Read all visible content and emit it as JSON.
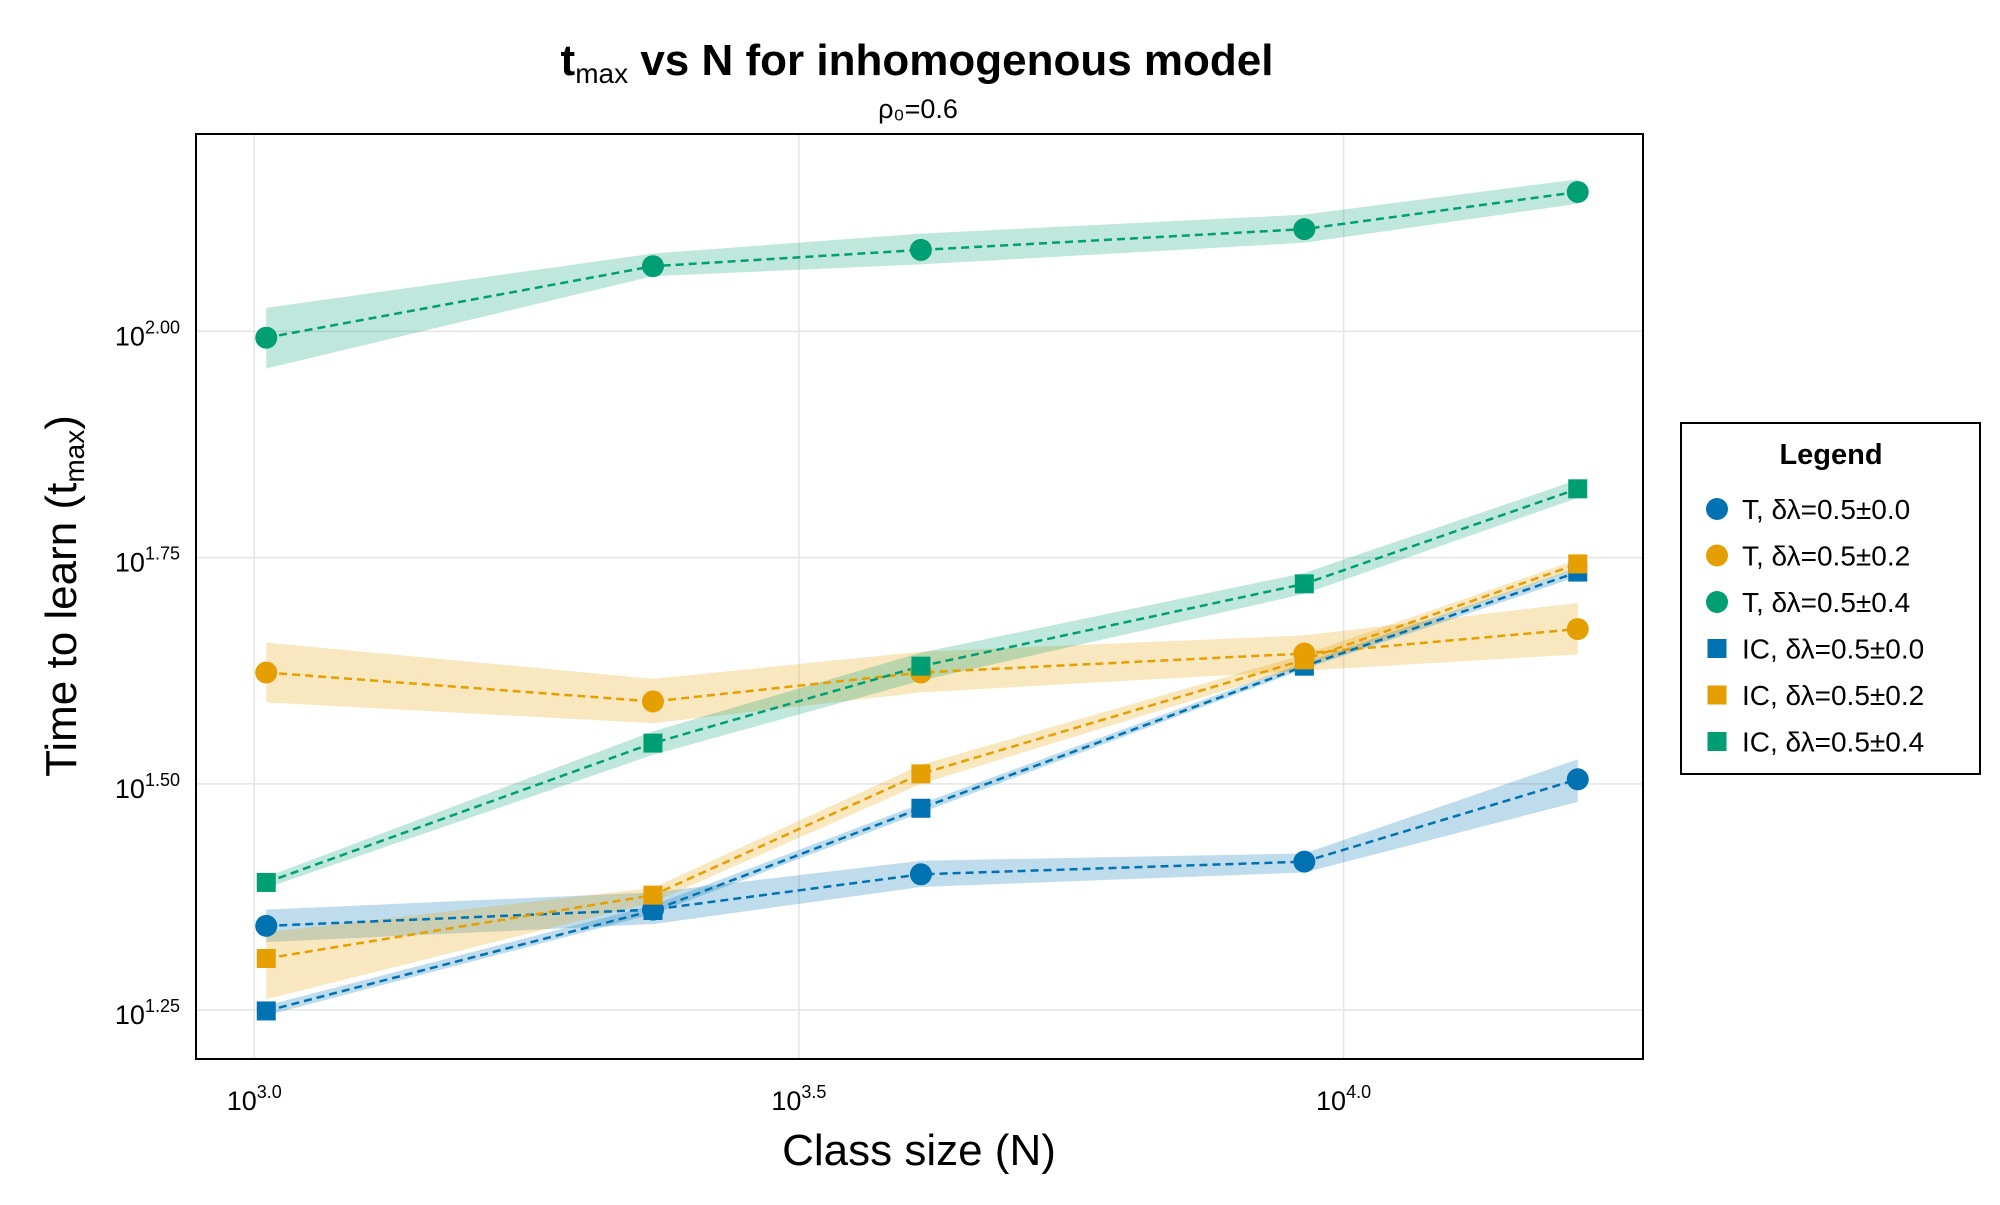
{
  "chart_data": {
    "type": "line",
    "title_main": "t",
    "title_sub": "max",
    "title_rest": " vs N for inhomogenous model",
    "subtitle": "ρ₀=0.6",
    "xlabel": "Class size (N)",
    "ylabel_main": "Time to learn (t",
    "ylabel_sub": "max",
    "ylabel_end": ")",
    "x_scale": "log10",
    "y_scale": "log10",
    "xlim_log10": [
      2.9465,
      4.2749
    ],
    "ylim_log10": [
      1.1959,
      2.2181
    ],
    "x_ticks": [
      {
        "base": "10",
        "exp": "3.0",
        "log10": 3.0
      },
      {
        "base": "10",
        "exp": "3.5",
        "log10": 3.5
      },
      {
        "base": "10",
        "exp": "4.0",
        "log10": 4.0
      }
    ],
    "y_ticks": [
      {
        "base": "10",
        "exp": "1.25",
        "log10": 1.25
      },
      {
        "base": "10",
        "exp": "1.50",
        "log10": 1.5
      },
      {
        "base": "10",
        "exp": "1.75",
        "log10": 1.75
      },
      {
        "base": "10",
        "exp": "2.00",
        "log10": 2.0
      }
    ],
    "grid": true,
    "legend_title": "Legend",
    "legend_position": "right",
    "x_log10": [
      3.011,
      3.366,
      3.612,
      3.964,
      4.215
    ],
    "series": [
      {
        "name": "T, δλ=0.5±0.0",
        "marker": "circle",
        "color": "#0072b2",
        "y_log10": [
          1.343,
          1.361,
          1.4,
          1.414,
          1.505
        ],
        "band_low": [
          1.325,
          1.345,
          1.386,
          1.402,
          1.48
        ],
        "band_high": [
          1.361,
          1.38,
          1.415,
          1.423,
          1.527
        ]
      },
      {
        "name": "T, δλ=0.5±0.2",
        "marker": "circle",
        "color": "#e69f00",
        "y_log10": [
          1.623,
          1.591,
          1.623,
          1.644,
          1.671
        ],
        "band_low": [
          1.59,
          1.567,
          1.601,
          1.625,
          1.643
        ],
        "band_high": [
          1.656,
          1.616,
          1.646,
          1.664,
          1.7
        ]
      },
      {
        "name": "T, δλ=0.5±0.4",
        "marker": "circle",
        "color": "#009e73",
        "y_log10": [
          1.993,
          2.072,
          2.09,
          2.113,
          2.154
        ],
        "band_low": [
          1.959,
          2.061,
          2.074,
          2.098,
          2.141
        ],
        "band_high": [
          2.026,
          2.086,
          2.108,
          2.129,
          2.168
        ]
      },
      {
        "name": "IC, δλ=0.5±0.0",
        "marker": "square",
        "color": "#0072b2",
        "y_log10": [
          1.249,
          1.36,
          1.473,
          1.63,
          1.734
        ],
        "band_low": [
          1.244,
          1.356,
          1.468,
          1.627,
          1.729
        ],
        "band_high": [
          1.255,
          1.366,
          1.478,
          1.634,
          1.739
        ]
      },
      {
        "name": "IC, δλ=0.5±0.2",
        "marker": "square",
        "color": "#e69f00",
        "y_log10": [
          1.307,
          1.377,
          1.511,
          1.637,
          1.743
        ],
        "band_low": [
          1.262,
          1.369,
          1.5,
          1.63,
          1.738
        ],
        "band_high": [
          1.336,
          1.385,
          1.521,
          1.643,
          1.748
        ]
      },
      {
        "name": "IC, δλ=0.5±0.4",
        "marker": "square",
        "color": "#009e73",
        "y_log10": [
          1.391,
          1.545,
          1.63,
          1.721,
          1.826
        ],
        "band_low": [
          1.385,
          1.532,
          1.614,
          1.71,
          1.816
        ],
        "band_high": [
          1.397,
          1.558,
          1.645,
          1.733,
          1.836
        ]
      }
    ]
  }
}
